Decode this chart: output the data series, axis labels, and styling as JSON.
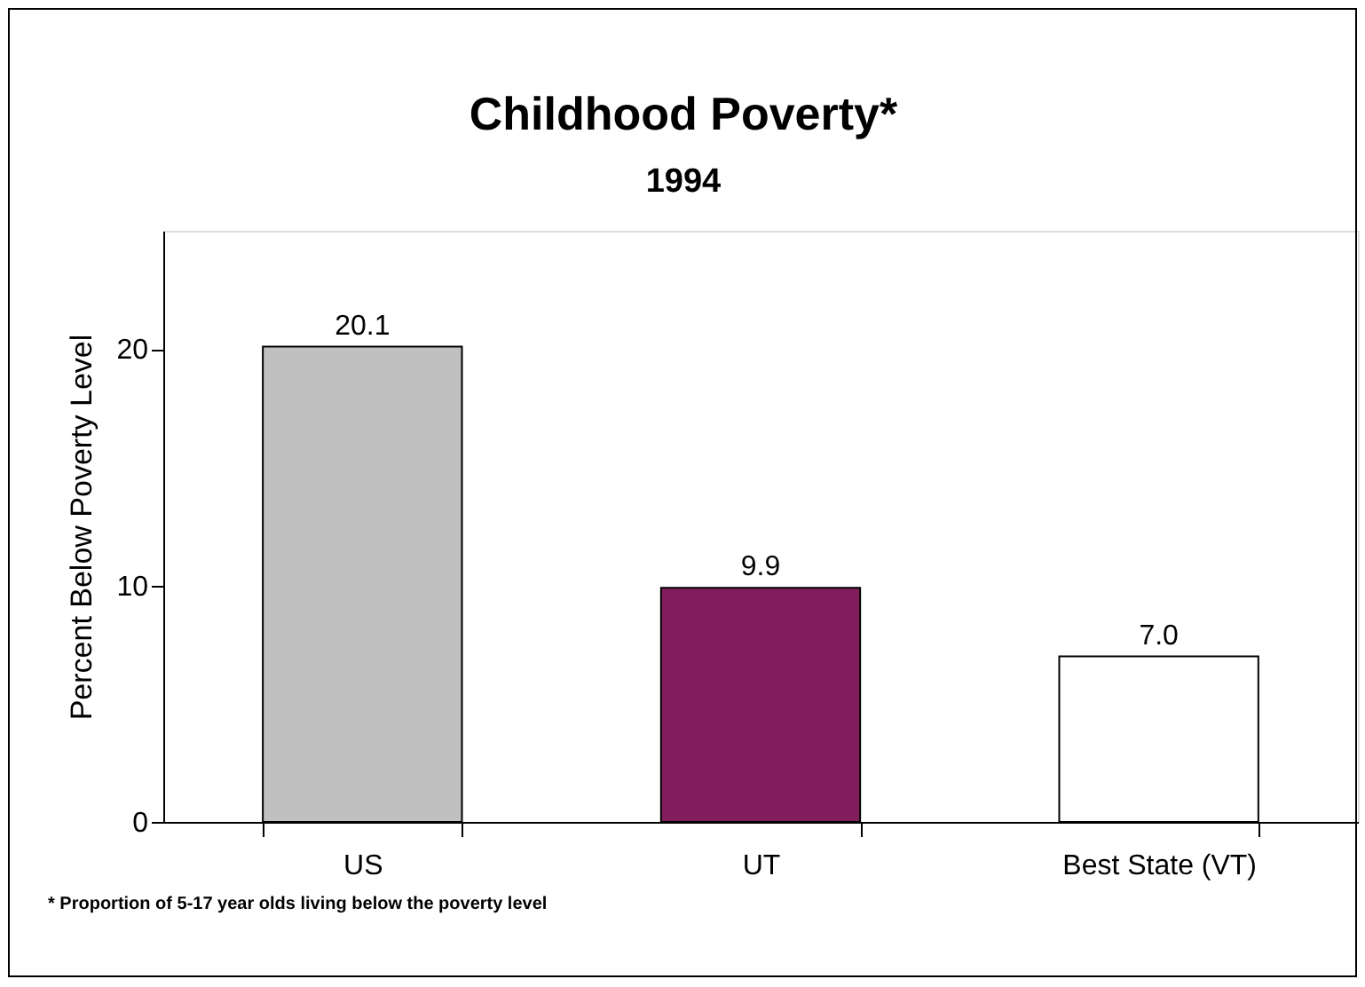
{
  "chart_data": {
    "type": "bar",
    "title": "Childhood Poverty*",
    "subtitle": "1994",
    "ylabel": "Percent Below Poverty Level",
    "categories": [
      "US",
      "UT",
      "Best State (VT)"
    ],
    "values": [
      20.1,
      9.9,
      7.0
    ],
    "value_labels": [
      "20.1",
      "9.9",
      "7.0"
    ],
    "colors": [
      "#c0c0c0",
      "#821e5e",
      "#ffffff"
    ],
    "ylim": [
      0,
      25
    ],
    "yticks": [
      0,
      10,
      20
    ],
    "grid": false,
    "annotations": [
      "* Proportion of 5-17 year olds living below the poverty level"
    ]
  }
}
